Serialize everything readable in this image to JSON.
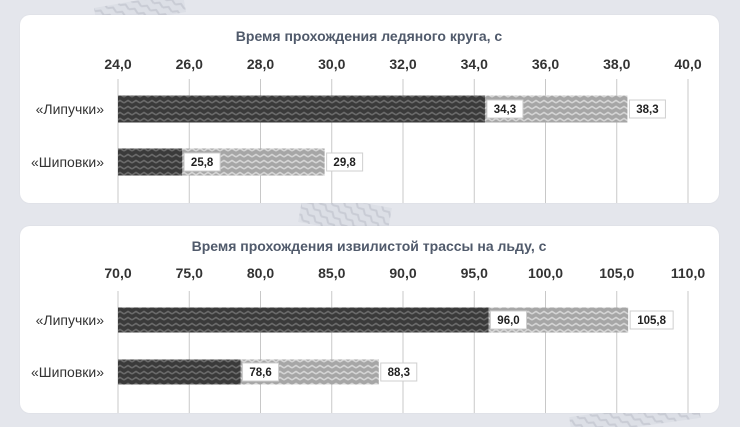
{
  "colors": {
    "background": "#e4e6ec",
    "panel": "#ffffff",
    "title": "#505a6b",
    "gridline": "#c8c8c8",
    "bar_dark": "#3a3a3a",
    "bar_light": "#a6a6a6"
  },
  "chart_data": [
    {
      "type": "bar",
      "orientation": "horizontal",
      "title": "Время прохождения ледяного круга, с",
      "categories": [
        "«Липучки»",
        "«Шиповки»"
      ],
      "xlim": [
        24.0,
        40.0
      ],
      "ticks": [
        "24,0",
        "26,0",
        "28,0",
        "30,0",
        "32,0",
        "34,0",
        "36,0",
        "38,0",
        "40,0"
      ],
      "tick_values": [
        24,
        26,
        28,
        30,
        32,
        34,
        36,
        38,
        40
      ],
      "grid": true,
      "series": [
        {
          "values": [
            34.3,
            25.8
          ],
          "labels": [
            "34,3",
            "25,8"
          ],
          "color": "#3a3a3a"
        },
        {
          "values": [
            38.3,
            29.8
          ],
          "labels": [
            "38,3",
            "29,8"
          ],
          "color": "#a6a6a6"
        }
      ]
    },
    {
      "type": "bar",
      "orientation": "horizontal",
      "title": "Время прохождения извилистой трассы на льду, с",
      "categories": [
        "«Липучки»",
        "«Шиповки»"
      ],
      "xlim": [
        70.0,
        110.0
      ],
      "ticks": [
        "70,0",
        "75,0",
        "80,0",
        "85,0",
        "90,0",
        "95,0",
        "100,0",
        "105,0",
        "110,0"
      ],
      "tick_values": [
        70,
        75,
        80,
        85,
        90,
        95,
        100,
        105,
        110
      ],
      "grid": true,
      "series": [
        {
          "values": [
            96.0,
            78.6
          ],
          "labels": [
            "96,0",
            "78,6"
          ],
          "color": "#3a3a3a"
        },
        {
          "values": [
            105.8,
            88.3
          ],
          "labels": [
            "105,8",
            "88,3"
          ],
          "color": "#a6a6a6"
        }
      ]
    }
  ]
}
